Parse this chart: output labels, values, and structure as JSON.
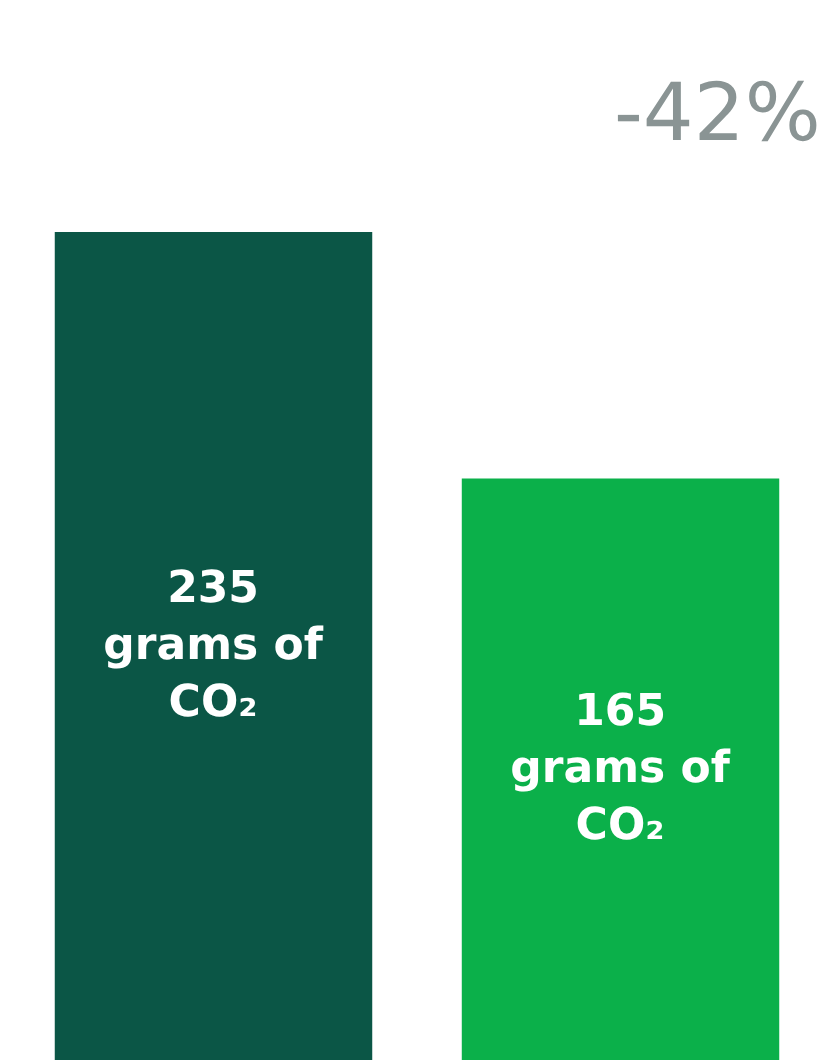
{
  "chart_data": {
    "type": "bar",
    "categories": [
      null,
      null
    ],
    "values": [
      235,
      165
    ],
    "colors": [
      "#0b5646",
      "#0bb04a"
    ],
    "value_labels": [
      "235 grams of CO₂",
      "165 grams of CO₂"
    ],
    "annotations": [
      "-42%"
    ],
    "tick_labels": false,
    "legend": false
  }
}
